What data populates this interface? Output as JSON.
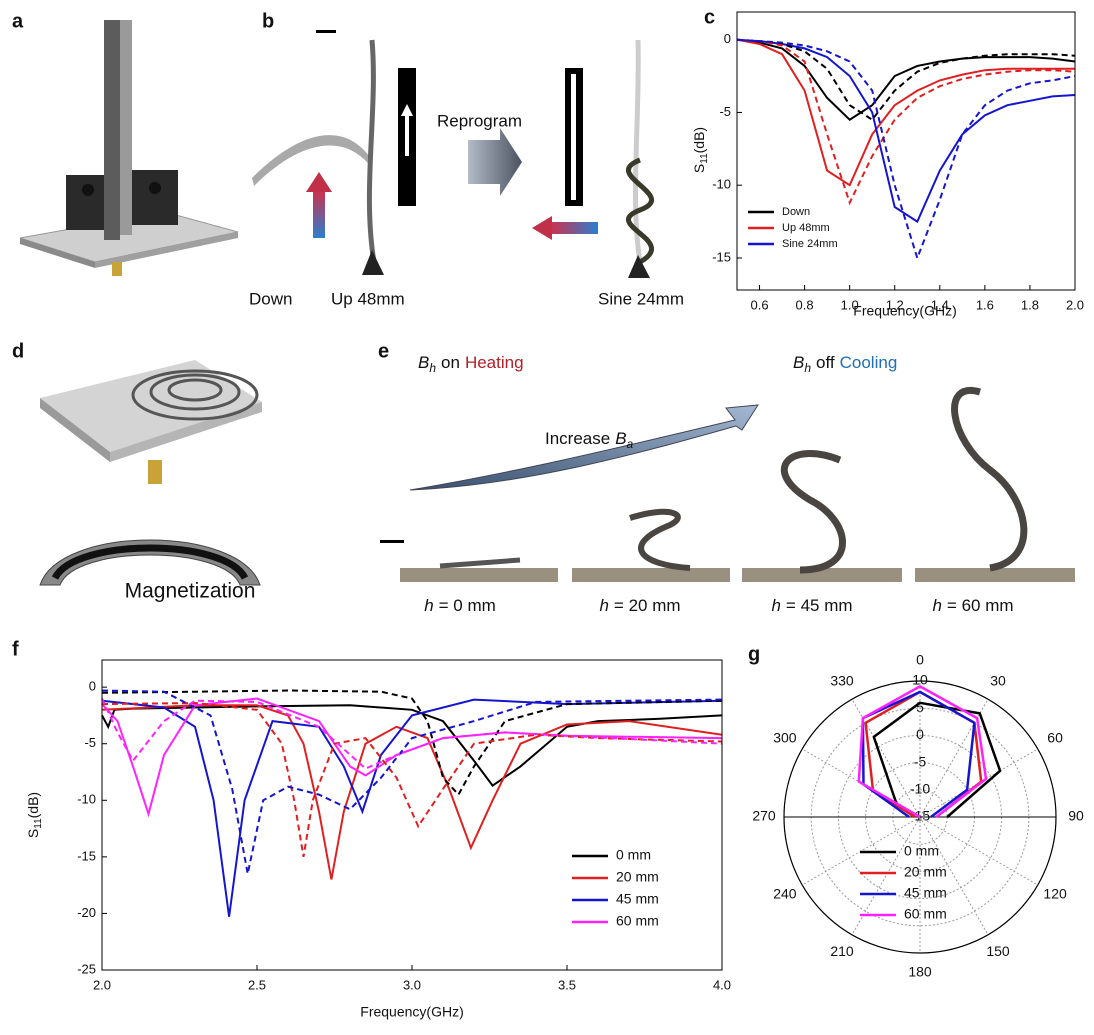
{
  "panels": {
    "a": "a",
    "b": "b",
    "c": "c",
    "d": "d",
    "e": "e",
    "f": "f",
    "g": "g"
  },
  "panel_b": {
    "reprogram": "Reprogram",
    "down": "Down",
    "up": "Up 48mm",
    "sine": "Sine 24mm"
  },
  "panel_d": {
    "magnetization": "Magnetization"
  },
  "panel_e": {
    "heating": {
      "var": "B",
      "sub": "h",
      "state": "on",
      "label": "Heating"
    },
    "cooling": {
      "var": "B",
      "sub": "h",
      "state": "off",
      "label": "Cooling"
    },
    "increase": {
      "text": "Increase",
      "var": "B",
      "sub": "a"
    },
    "captions": [
      {
        "var": "h",
        "rest": "= 0 mm"
      },
      {
        "var": "h",
        "rest": "= 20 mm"
      },
      {
        "var": "h",
        "rest": "= 45 mm"
      },
      {
        "var": "h",
        "rest": "= 60 mm"
      }
    ]
  },
  "chart_data": [
    {
      "type": "line",
      "xlabel": "Frequency(GHz)",
      "ylabel": {
        "main": "S",
        "sub": "11",
        "unit": "(dB)"
      },
      "x": [
        0.5,
        0.6,
        0.7,
        0.8,
        0.9,
        1.0,
        1.1,
        1.2,
        1.3,
        1.4,
        1.5,
        1.6,
        1.7,
        1.8,
        1.9,
        2.0
      ],
      "xlim": [
        0.5,
        2.0
      ],
      "xticks": [
        0.6,
        0.8,
        {
          "value": 1,
          "label": "1.0"
        },
        1.2,
        1.4,
        1.6,
        1.8,
        {
          "value": 2,
          "label": "2.0"
        }
      ],
      "ylim": [
        -17.2,
        1.9
      ],
      "yticks": [
        0,
        -5,
        -10,
        -15
      ],
      "series": [
        {
          "name": "Down",
          "color": "#000000",
          "values": [
            0,
            -0.2,
            -0.6,
            -1.8,
            -4.0,
            -5.5,
            -4.5,
            -2.5,
            -1.8,
            -1.5,
            -1.3,
            -1.2,
            -1.2,
            -1.2,
            -1.3,
            -1.5
          ]
        },
        {
          "name": "Up   48mm",
          "color": "#e02020",
          "values": [
            0,
            -0.3,
            -1.0,
            -3.5,
            -9.0,
            -10.0,
            -6.5,
            -4.5,
            -3.5,
            -2.8,
            -2.4,
            -2.1,
            -2.0,
            -2.0,
            -2.0,
            -2.0
          ]
        },
        {
          "name": "Sine 24mm",
          "color": "#1515d0",
          "values": [
            0,
            -0.1,
            -0.3,
            -0.6,
            -1.2,
            -2.5,
            -5.0,
            -11.5,
            -12.5,
            -9.0,
            -6.5,
            -5.2,
            -4.5,
            -4.2,
            -3.9,
            -3.8
          ]
        },
        {
          "color": "#000000",
          "dashed": true,
          "values": [
            0,
            -0.1,
            -0.3,
            -0.8,
            -2.0,
            -4.5,
            -5.5,
            -3.5,
            -2.2,
            -1.6,
            -1.3,
            -1.1,
            -1.0,
            -1.0,
            -1.0,
            -1.1
          ]
        },
        {
          "color": "#e02020",
          "dashed": true,
          "values": [
            0,
            -0.1,
            -0.4,
            -1.5,
            -6.5,
            -11.2,
            -8.0,
            -5.5,
            -4.0,
            -3.2,
            -2.7,
            -2.4,
            -2.2,
            -2.1,
            -2.1,
            -2.2
          ]
        },
        {
          "color": "#1515d0",
          "dashed": true,
          "values": [
            0,
            -0.1,
            -0.2,
            -0.4,
            -0.8,
            -1.5,
            -3.5,
            -10.0,
            -15.0,
            -11.0,
            -6.5,
            -4.5,
            -3.5,
            -3.0,
            -2.8,
            -2.5
          ]
        }
      ]
    },
    {
      "type": "line",
      "xlabel": "Frequency(GHz)",
      "ylabel": {
        "main": "S",
        "sub": "11",
        "unit": "(dB)"
      },
      "xlim": [
        2.0,
        4.0
      ],
      "xticks": [
        {
          "value": 2,
          "label": "2.0"
        },
        2.5,
        {
          "value": 3,
          "label": "3.0"
        },
        3.5,
        {
          "value": 4,
          "label": "4.0"
        }
      ],
      "ylim": [
        -25,
        2.4
      ],
      "yticks": [
        0,
        -5,
        -10,
        -15,
        -20,
        -25
      ],
      "series": [
        {
          "name": "0  mm",
          "color": "#000000",
          "x": [
            2.0,
            2.02,
            2.04,
            2.1,
            2.5,
            2.8,
            3.0,
            3.1,
            3.2,
            3.26,
            3.35,
            3.5,
            3.6,
            3.8,
            4.0
          ],
          "values": [
            -2.5,
            -3.5,
            -2.0,
            -1.9,
            -1.7,
            -1.6,
            -2.0,
            -3.0,
            -6.5,
            -8.7,
            -7.0,
            -3.5,
            -3.0,
            -2.8,
            -2.5
          ]
        },
        {
          "name": "20 mm",
          "color": "#e02020",
          "x": [
            2.0,
            2.3,
            2.5,
            2.6,
            2.65,
            2.7,
            2.74,
            2.78,
            2.85,
            2.95,
            3.05,
            3.12,
            3.19,
            3.26,
            3.35,
            3.5,
            3.7,
            4.0
          ],
          "values": [
            -2.0,
            -1.6,
            -1.6,
            -2.5,
            -5,
            -11,
            -17,
            -11,
            -5,
            -3.5,
            -4.5,
            -9,
            -14.2,
            -10,
            -5,
            -3.3,
            -3.0,
            -4.2
          ]
        },
        {
          "name": "45 mm",
          "color": "#1515d0",
          "x": [
            2.0,
            2.2,
            2.3,
            2.36,
            2.41,
            2.46,
            2.55,
            2.7,
            2.78,
            2.84,
            2.9,
            3.0,
            3.2,
            3.5,
            4.0
          ],
          "values": [
            -1.2,
            -1.8,
            -3.5,
            -10,
            -20.3,
            -10,
            -3,
            -3.5,
            -7,
            -11,
            -6,
            -2.5,
            -1.1,
            -1.5,
            -1.2
          ]
        },
        {
          "name": "60 mm",
          "color": "#ff22ff",
          "x": [
            2.0,
            2.05,
            2.1,
            2.15,
            2.2,
            2.3,
            2.5,
            2.7,
            2.8,
            2.85,
            2.95,
            3.1,
            3.3,
            3.5,
            4.0
          ],
          "values": [
            -1.5,
            -3,
            -7,
            -11.2,
            -6,
            -1.6,
            -1.0,
            -3,
            -7,
            -7.8,
            -6,
            -4.5,
            -4.0,
            -4.3,
            -4.5
          ]
        },
        {
          "color": "#000000",
          "dashed": true,
          "x": [
            2.0,
            2.3,
            2.6,
            2.9,
            3.0,
            3.05,
            3.1,
            3.15,
            3.2,
            3.3,
            3.5,
            4.0
          ],
          "values": [
            -0.5,
            -0.4,
            -0.3,
            -0.4,
            -1.0,
            -3.0,
            -8.0,
            -9.5,
            -7.0,
            -3.0,
            -1.5,
            -1.2
          ]
        },
        {
          "color": "#e02020",
          "dashed": true,
          "x": [
            2.0,
            2.3,
            2.5,
            2.58,
            2.62,
            2.65,
            2.68,
            2.75,
            2.85,
            2.95,
            3.02,
            3.1,
            3.2,
            3.4,
            3.6,
            4.0
          ],
          "values": [
            -1.5,
            -1.4,
            -2.0,
            -5,
            -10,
            -15,
            -10,
            -5,
            -4.5,
            -8,
            -12.3,
            -9,
            -5,
            -4.2,
            -4.5,
            -4.8
          ]
        },
        {
          "color": "#1515d0",
          "dashed": true,
          "x": [
            2.0,
            2.2,
            2.35,
            2.42,
            2.47,
            2.52,
            2.6,
            2.7,
            2.8,
            2.9,
            3.0,
            3.2,
            3.4,
            4.0
          ],
          "values": [
            -0.3,
            -0.4,
            -2.5,
            -9,
            -16.5,
            -10,
            -8.8,
            -9.5,
            -10.8,
            -8,
            -4.5,
            -3,
            -1.3,
            -1.1
          ]
        },
        {
          "color": "#ff22ff",
          "dashed": true,
          "x": [
            2.0,
            2.05,
            2.1,
            2.2,
            2.3,
            2.5,
            2.7,
            2.85,
            2.95,
            3.1,
            3.3,
            3.5,
            4.0
          ],
          "values": [
            -1.0,
            -4,
            -6.5,
            -3,
            -1.2,
            -1.3,
            -3.5,
            -7.2,
            -6,
            -4.5,
            -4.0,
            -4.3,
            -5.0
          ]
        }
      ]
    },
    {
      "type": "polar",
      "theta": [
        270,
        300,
        330,
        0,
        30,
        60,
        90
      ],
      "rlim": [
        -15,
        10
      ],
      "rticks": [
        10,
        5,
        0,
        -5,
        -10,
        -15
      ],
      "thetaticks": [
        0,
        30,
        60,
        90,
        120,
        150,
        180,
        210,
        240,
        270,
        300,
        330
      ],
      "series": [
        {
          "name": "0  mm",
          "color": "#000000",
          "values": [
            -14,
            -10,
            2,
            6,
            7,
            2,
            -10
          ]
        },
        {
          "name": "20 mm",
          "color": "#e02020",
          "values": [
            -14,
            -5,
            5,
            8,
            5,
            -2,
            -12
          ]
        },
        {
          "name": "45 mm",
          "color": "#1515d0",
          "values": [
            -13,
            -3,
            6,
            8,
            5,
            -5,
            -13
          ]
        },
        {
          "name": "60 mm",
          "color": "#ff22ff",
          "values": [
            -15,
            -2,
            6,
            9,
            6,
            -1,
            -12
          ]
        }
      ]
    }
  ]
}
